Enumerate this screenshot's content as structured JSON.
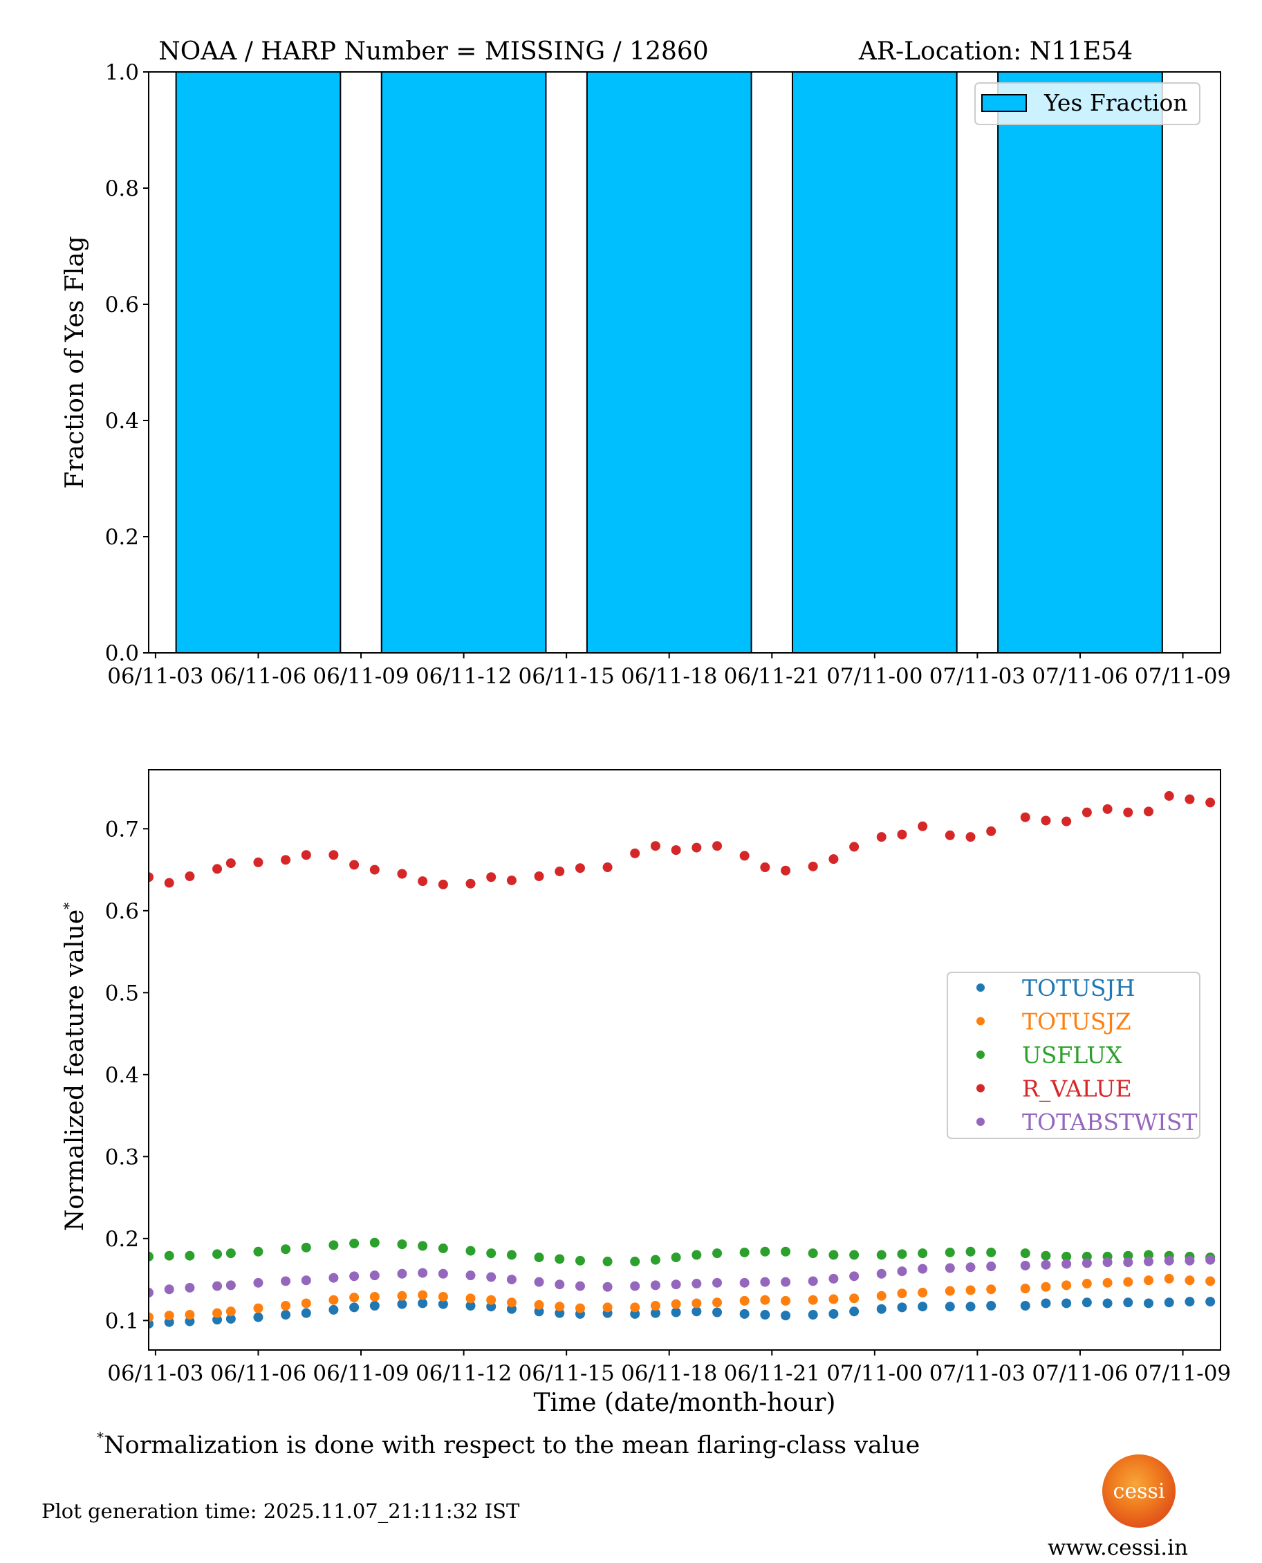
{
  "chart_data": [
    {
      "type": "bar",
      "title": "NOAA / HARP Number = MISSING / 12860      AR-Location: N11E54",
      "title_left": "NOAA / HARP Number = MISSING / 12860",
      "title_right": "AR-Location: N11E54",
      "xlabel": "",
      "ylabel": "Fraction of Yes Flag",
      "ylim": [
        0.0,
        1.0
      ],
      "xlim_hours": [
        2.8,
        34.1
      ],
      "yticks": [
        "0.0",
        "0.2",
        "0.4",
        "0.6",
        "0.8",
        "1.0"
      ],
      "ytick_values": [
        0.0,
        0.2,
        0.4,
        0.6,
        0.8,
        1.0
      ],
      "xticks": [
        "06/11-03",
        "06/11-06",
        "06/11-09",
        "06/11-12",
        "06/11-15",
        "06/11-18",
        "06/11-21",
        "07/11-00",
        "07/11-03",
        "07/11-06",
        "07/11-09"
      ],
      "xtick_hours": [
        3,
        6,
        9,
        12,
        15,
        18,
        21,
        24,
        27,
        30,
        33
      ],
      "bars": [
        {
          "start_hour": 3.6,
          "end_hour": 8.4,
          "value": 1.0
        },
        {
          "start_hour": 9.6,
          "end_hour": 14.4,
          "value": 1.0
        },
        {
          "start_hour": 15.6,
          "end_hour": 20.4,
          "value": 1.0
        },
        {
          "start_hour": 21.6,
          "end_hour": 26.4,
          "value": 1.0
        },
        {
          "start_hour": 27.6,
          "end_hour": 32.4,
          "value": 1.0
        }
      ],
      "bar_color": "#00bfff",
      "legend": [
        {
          "label": "Yes Fraction",
          "color": "#00bfff"
        }
      ],
      "legend_position": "top-right",
      "grid": false
    },
    {
      "type": "scatter",
      "title": "",
      "xlabel": "Time (date/month-hour)",
      "ylabel": "Normalized feature value",
      "ylabel_marker": "*",
      "ylim": [
        0.064,
        0.772
      ],
      "xlim_hours": [
        2.8,
        34.1
      ],
      "yticks": [
        "0.1",
        "0.2",
        "0.3",
        "0.4",
        "0.5",
        "0.6",
        "0.7"
      ],
      "ytick_values": [
        0.1,
        0.2,
        0.3,
        0.4,
        0.5,
        0.6,
        0.7
      ],
      "xticks": [
        "06/11-03",
        "06/11-06",
        "06/11-09",
        "06/11-12",
        "06/11-15",
        "06/11-18",
        "06/11-21",
        "07/11-00",
        "07/11-03",
        "07/11-06",
        "07/11-09"
      ],
      "xtick_hours": [
        3,
        6,
        9,
        12,
        15,
        18,
        21,
        24,
        27,
        30,
        33
      ],
      "legend_position": "center-right",
      "grid": false,
      "x_hours": [
        2.8,
        3.4,
        4.0,
        4.8,
        5.2,
        6.0,
        6.8,
        7.4,
        8.2,
        8.8,
        9.4,
        10.2,
        10.8,
        11.4,
        12.2,
        12.8,
        13.4,
        14.2,
        14.8,
        15.4,
        16.2,
        17.0,
        17.6,
        18.2,
        18.8,
        19.4,
        20.2,
        20.8,
        21.4,
        22.2,
        22.8,
        23.4,
        24.2,
        24.8,
        25.4,
        26.2,
        26.8,
        27.4,
        28.4,
        29.0,
        29.6,
        30.2,
        30.8,
        31.4,
        32.0,
        32.6,
        33.2,
        33.8
      ],
      "series": [
        {
          "name": "TOTUSJH",
          "color": "#1f77b4",
          "values": [
            0.096,
            0.098,
            0.099,
            0.101,
            0.102,
            0.104,
            0.107,
            0.109,
            0.113,
            0.116,
            0.118,
            0.12,
            0.121,
            0.12,
            0.118,
            0.117,
            0.114,
            0.111,
            0.109,
            0.108,
            0.109,
            0.108,
            0.109,
            0.11,
            0.111,
            0.11,
            0.108,
            0.107,
            0.106,
            0.107,
            0.108,
            0.111,
            0.114,
            0.116,
            0.117,
            0.117,
            0.117,
            0.118,
            0.118,
            0.121,
            0.121,
            0.122,
            0.121,
            0.122,
            0.121,
            0.122,
            0.123,
            0.123
          ]
        },
        {
          "name": "TOTUSJZ",
          "color": "#ff7f0e",
          "values": [
            0.104,
            0.106,
            0.107,
            0.109,
            0.111,
            0.115,
            0.118,
            0.121,
            0.125,
            0.128,
            0.129,
            0.13,
            0.131,
            0.129,
            0.127,
            0.125,
            0.122,
            0.119,
            0.117,
            0.115,
            0.116,
            0.116,
            0.118,
            0.12,
            0.121,
            0.122,
            0.124,
            0.125,
            0.124,
            0.125,
            0.126,
            0.127,
            0.13,
            0.133,
            0.134,
            0.136,
            0.137,
            0.138,
            0.139,
            0.141,
            0.143,
            0.145,
            0.146,
            0.147,
            0.149,
            0.151,
            0.149,
            0.148
          ]
        },
        {
          "name": "USFLUX",
          "color": "#2ca02c",
          "values": [
            0.178,
            0.179,
            0.179,
            0.181,
            0.182,
            0.184,
            0.187,
            0.189,
            0.192,
            0.194,
            0.195,
            0.193,
            0.191,
            0.188,
            0.185,
            0.182,
            0.18,
            0.177,
            0.175,
            0.173,
            0.172,
            0.172,
            0.174,
            0.177,
            0.18,
            0.182,
            0.183,
            0.184,
            0.184,
            0.182,
            0.18,
            0.18,
            0.18,
            0.181,
            0.182,
            0.183,
            0.184,
            0.183,
            0.182,
            0.179,
            0.178,
            0.178,
            0.178,
            0.179,
            0.18,
            0.179,
            0.178,
            0.177
          ]
        },
        {
          "name": "R_VALUE",
          "color": "#d62728",
          "values": [
            0.641,
            0.634,
            0.642,
            0.651,
            0.658,
            0.659,
            0.662,
            0.668,
            0.668,
            0.656,
            0.65,
            0.645,
            0.636,
            0.632,
            0.633,
            0.641,
            0.637,
            0.642,
            0.648,
            0.652,
            0.653,
            0.67,
            0.679,
            0.674,
            0.677,
            0.679,
            0.667,
            0.653,
            0.649,
            0.654,
            0.663,
            0.678,
            0.69,
            0.693,
            0.703,
            0.692,
            0.69,
            0.697,
            0.714,
            0.71,
            0.709,
            0.72,
            0.724,
            0.72,
            0.721,
            0.74,
            0.736,
            0.732
          ]
        },
        {
          "name": "TOTABSTWIST",
          "color": "#9467bd",
          "values": [
            0.134,
            0.138,
            0.14,
            0.142,
            0.143,
            0.146,
            0.148,
            0.149,
            0.152,
            0.154,
            0.155,
            0.157,
            0.158,
            0.157,
            0.155,
            0.153,
            0.15,
            0.147,
            0.144,
            0.142,
            0.141,
            0.142,
            0.143,
            0.144,
            0.145,
            0.146,
            0.146,
            0.147,
            0.147,
            0.148,
            0.151,
            0.154,
            0.157,
            0.16,
            0.163,
            0.164,
            0.165,
            0.166,
            0.167,
            0.168,
            0.169,
            0.17,
            0.171,
            0.171,
            0.172,
            0.173,
            0.173,
            0.174
          ]
        }
      ]
    }
  ],
  "footer": {
    "note_marker": "*",
    "note": "Normalization is done with respect to the mean flaring-class value",
    "generation_time": "Plot generation time: 2025.11.07_21:11:32 IST",
    "logo_text": "cessi",
    "url": "www.cessi.in"
  }
}
